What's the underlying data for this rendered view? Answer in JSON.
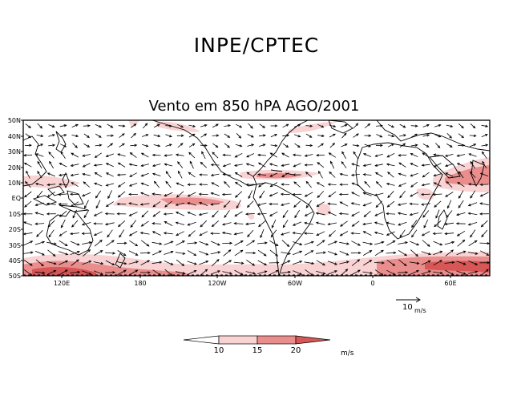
{
  "header": {
    "title": "INPE/CPTEC"
  },
  "map": {
    "title": "Vento em 850 hPA AGO/2001",
    "lat_labels": [
      "50N",
      "40N",
      "30N",
      "20N",
      "10N",
      "EQ",
      "10S",
      "20S",
      "30S",
      "40S",
      "50S"
    ],
    "lon_labels": [
      "120E",
      "180",
      "120W",
      "60W",
      "0",
      "60E"
    ],
    "shading_colors": [
      "#f9d3d3",
      "#ea8d8d",
      "#d75656"
    ]
  },
  "reference_vector": {
    "value": "10",
    "unit": "m/s"
  },
  "colorbar": {
    "ticks": [
      "10",
      "15",
      "20"
    ],
    "unit": "m/s"
  }
}
